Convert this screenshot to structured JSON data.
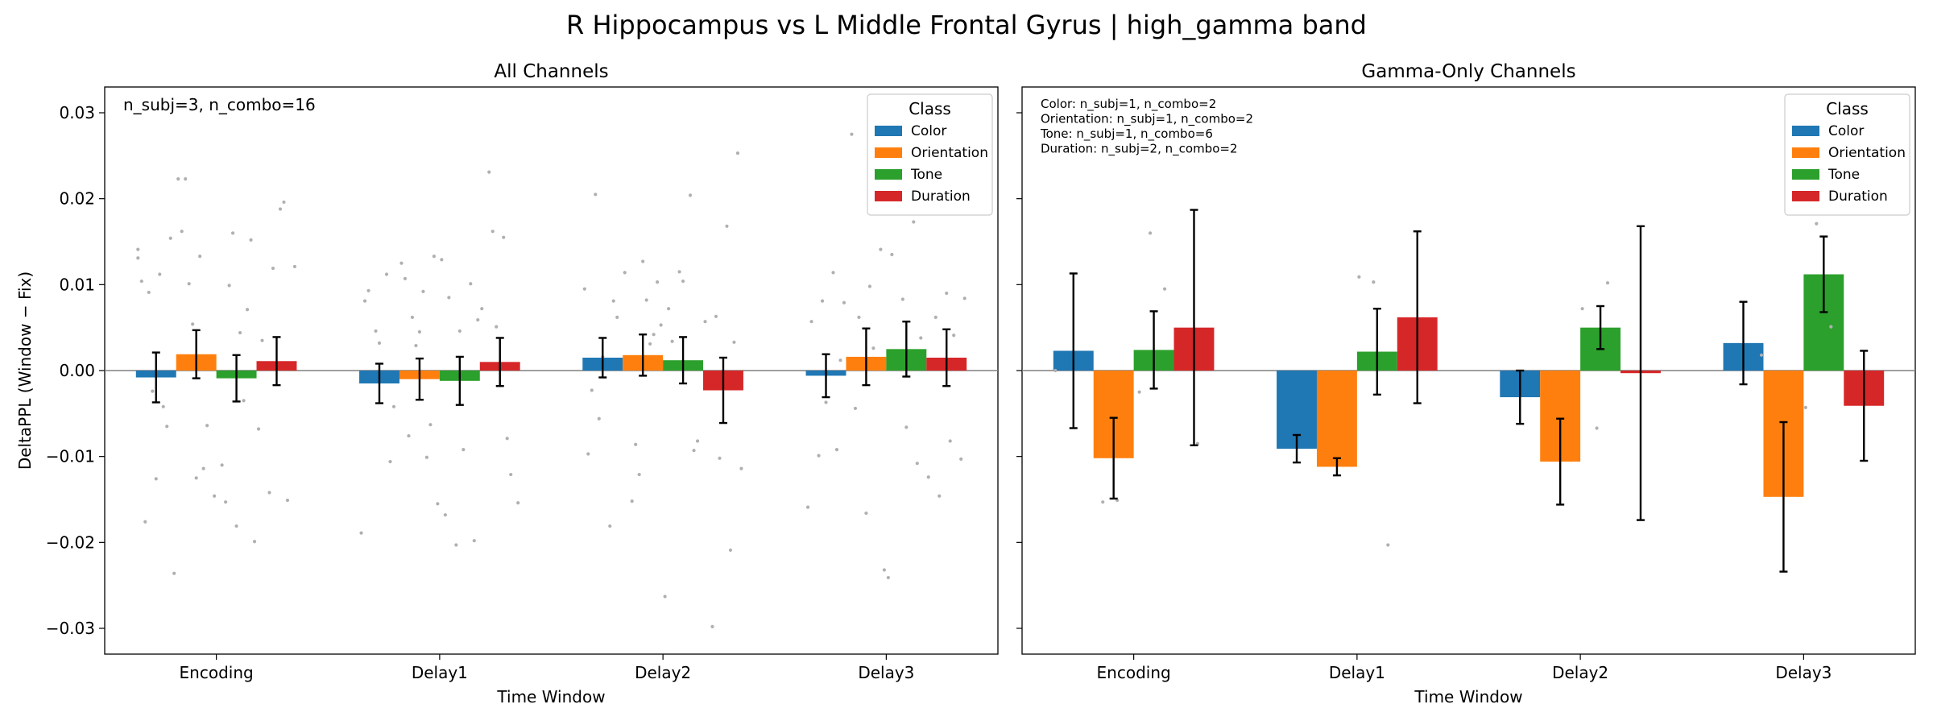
{
  "figure": {
    "title": "R Hippocampus vs L Middle Frontal Gyrus  |  high_gamma band",
    "ylabel": "DeltaPPL (Window − Fix)"
  },
  "colors": {
    "Color": "#1f77b4",
    "Orientation": "#ff7f0e",
    "Tone": "#2ca02c",
    "Duration": "#d62728",
    "points": "#b0b0b0",
    "zero_line": "#808080"
  },
  "chart_data": [
    {
      "type": "bar",
      "title": "All Channels",
      "xlabel": "Time Window",
      "ylabel": "DeltaPPL (Window − Fix)",
      "ylim": [
        -0.033,
        0.033
      ],
      "yticks": [
        -0.03,
        -0.02,
        -0.01,
        0.0,
        0.01,
        0.02,
        0.03
      ],
      "ytick_labels": [
        "−0.03",
        "−0.02",
        "−0.01",
        "0.00",
        "0.01",
        "0.02",
        "0.03"
      ],
      "categories": [
        "Encoding",
        "Delay1",
        "Delay2",
        "Delay3"
      ],
      "annotation": [
        "n_subj=3, n_combo=16"
      ],
      "legend": {
        "title": "Class",
        "placement": "upper right",
        "entries": [
          "Color",
          "Orientation",
          "Tone",
          "Duration"
        ]
      },
      "series": [
        {
          "name": "Color",
          "values": [
            -0.0008,
            -0.0015,
            0.0015,
            -0.0006
          ],
          "err": [
            0.0029,
            0.0023,
            0.0023,
            0.0025
          ]
        },
        {
          "name": "Orientation",
          "values": [
            0.0019,
            -0.001,
            0.0018,
            0.0016
          ],
          "err": [
            0.0028,
            0.0024,
            0.0024,
            0.0033
          ]
        },
        {
          "name": "Tone",
          "values": [
            -0.0009,
            -0.0012,
            0.0012,
            0.0025
          ],
          "err": [
            0.0027,
            0.0028,
            0.0027,
            0.0032
          ]
        },
        {
          "name": "Duration",
          "values": [
            0.0011,
            0.001,
            -0.0023,
            0.0015
          ],
          "err": [
            0.0028,
            0.0028,
            0.0038,
            0.0033
          ]
        }
      ],
      "points": [
        [
          [
            0.0131,
            -0.0024,
            -0.0065,
            0.0104,
            -0.0126,
            0.0154,
            -0.0176,
            0.0112,
            -0.0236,
            0.0091,
            -0.0042,
            0.0141
          ],
          [
            0.0223,
            0.0133,
            -0.0146,
            0.0101,
            -0.0114,
            0.0223,
            0.0054,
            -0.0064,
            0.0162,
            -0.0125
          ],
          [
            0.016,
            0.0071,
            -0.011,
            -0.0181,
            0.0152,
            -0.0153,
            0.0044,
            -0.0199,
            0.0099,
            -0.0035
          ],
          [
            0.0188,
            0.0121,
            -0.0142,
            0.0196,
            -0.0068,
            0.0119,
            -0.0151,
            0.0035
          ]
        ],
        [
          [
            0.0112,
            -0.0189,
            0.0046,
            -0.0106,
            0.0081,
            0.0032,
            -0.0042,
            0.0093
          ],
          [
            0.0133,
            -0.0076,
            0.0092,
            -0.0155,
            0.0062,
            -0.0101,
            0.0125,
            0.0029,
            -0.0063,
            0.0107,
            0.0045
          ],
          [
            0.0129,
            -0.0203,
            0.0101,
            -0.0168,
            0.0046,
            -0.0198,
            0.0085,
            -0.0092,
            0.0059
          ],
          [
            0.0231,
            0.0155,
            -0.0154,
            0.0162,
            -0.0079,
            0.0072,
            0.0051,
            -0.0121
          ]
        ],
        [
          [
            0.0205,
            -0.0181,
            0.0095,
            -0.0056,
            0.0081,
            -0.0097,
            0.0016,
            0.0062,
            -0.0023
          ],
          [
            0.0127,
            0.0103,
            -0.0152,
            0.0082,
            0.0053,
            -0.0086,
            0.0031,
            0.0114,
            -0.0121,
            0.0042
          ],
          [
            0.0204,
            -0.0263,
            0.0115,
            -0.0093,
            0.0072,
            0.0104,
            -0.0082,
            0.0034
          ],
          [
            0.0253,
            -0.0298,
            0.0168,
            -0.0114,
            0.0063,
            -0.0209,
            0.0057,
            -0.0102,
            0.0033
          ]
        ],
        [
          [
            0.0079,
            -0.0099,
            0.0114,
            -0.0159,
            0.0081,
            -0.0092,
            0.0057,
            -0.0037,
            0.0012
          ],
          [
            0.0275,
            -0.0166,
            0.0141,
            -0.0044,
            0.0098,
            -0.0232,
            0.0062,
            0.0026
          ],
          [
            0.0209,
            0.0173,
            -0.0241,
            0.0083,
            -0.0108,
            0.0135,
            -0.0066,
            0.0038
          ],
          [
            0.009,
            -0.0103,
            0.0062,
            -0.0082,
            0.0084,
            -0.0146,
            0.0041,
            -0.0124
          ]
        ]
      ]
    },
    {
      "type": "bar",
      "title": "Gamma-Only Channels",
      "xlabel": "Time Window",
      "ylim": [
        -0.033,
        0.033
      ],
      "yticks": [
        -0.03,
        -0.02,
        -0.01,
        0.0,
        0.01,
        0.02,
        0.03
      ],
      "ytick_labels": [
        "",
        "",
        "",
        "",
        "",
        "",
        ""
      ],
      "categories": [
        "Encoding",
        "Delay1",
        "Delay2",
        "Delay3"
      ],
      "annotation": [
        "Color: n_subj=1, n_combo=2",
        "Orientation: n_subj=1, n_combo=2",
        "Tone: n_subj=1, n_combo=6",
        "Duration: n_subj=2, n_combo=2"
      ],
      "legend": {
        "title": "Class",
        "placement": "upper right",
        "entries": [
          "Color",
          "Orientation",
          "Tone",
          "Duration"
        ]
      },
      "series": [
        {
          "name": "Color",
          "values": [
            0.0023,
            -0.0091,
            -0.0031,
            0.0032
          ],
          "err": [
            0.009,
            0.0016,
            0.0031,
            0.0048
          ]
        },
        {
          "name": "Orientation",
          "values": [
            -0.0102,
            -0.0112,
            -0.0106,
            -0.0147
          ],
          "err": [
            0.0047,
            0.001,
            0.005,
            0.0087
          ]
        },
        {
          "name": "Tone",
          "values": [
            0.0024,
            0.0022,
            0.005,
            0.0112
          ],
          "err": [
            0.0045,
            0.005,
            0.0025,
            0.0044
          ]
        },
        {
          "name": "Duration",
          "values": [
            0.005,
            0.0062,
            -0.0003,
            -0.0041
          ],
          "err": [
            0.0137,
            0.01,
            0.0171,
            0.0064
          ]
        }
      ],
      "points": [
        [
          [
            0.0
          ],
          [
            -0.0153,
            -0.0151
          ],
          [
            0.016,
            0.0095,
            -0.0025
          ],
          [
            -0.0085
          ]
        ],
        [
          [],
          [],
          [
            0.0109,
            0.0103,
            -0.0203
          ],
          []
        ],
        [
          [],
          [],
          [
            0.0102,
            0.0072,
            -0.0067
          ],
          []
        ],
        [
          [
            0.0018
          ],
          [],
          [
            0.0171,
            0.0051,
            -0.0043
          ],
          []
        ]
      ]
    }
  ]
}
